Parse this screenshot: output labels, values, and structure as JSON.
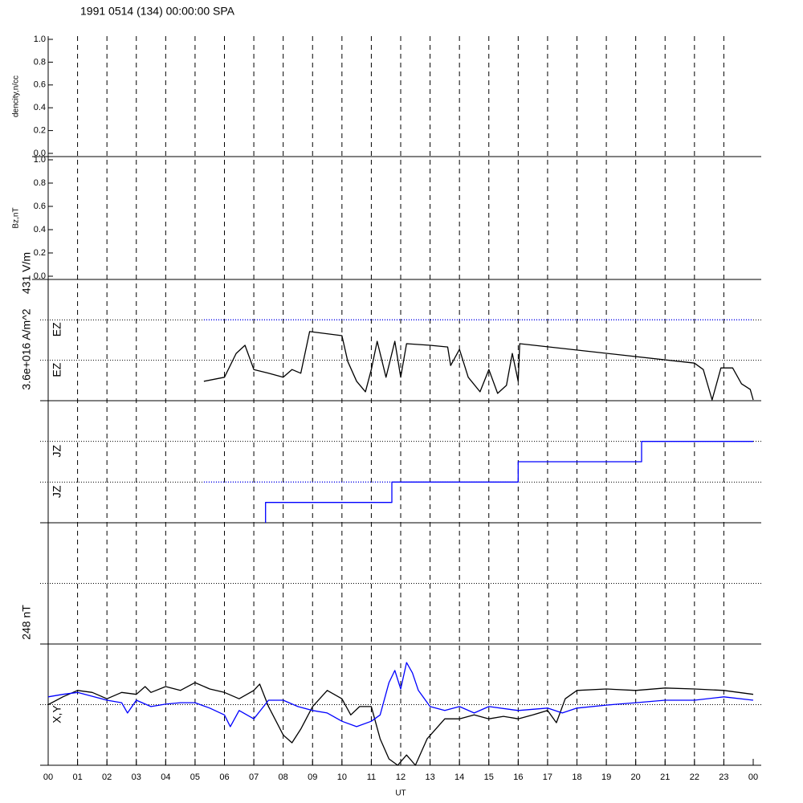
{
  "title": "1991 0514 (134) 00:00:00 SPA",
  "x_axis": {
    "label": "UT",
    "xlim": [
      0,
      24
    ],
    "xticks": [
      {
        "value": 0,
        "label": "00"
      },
      {
        "value": 1,
        "label": "01"
      },
      {
        "value": 2,
        "label": "02"
      },
      {
        "value": 3,
        "label": "03"
      },
      {
        "value": 4,
        "label": "04"
      },
      {
        "value": 5,
        "label": "05"
      },
      {
        "value": 6,
        "label": "06"
      },
      {
        "value": 7,
        "label": "07"
      },
      {
        "value": 8,
        "label": "08"
      },
      {
        "value": 9,
        "label": "09"
      },
      {
        "value": 10,
        "label": "10"
      },
      {
        "value": 11,
        "label": "11"
      },
      {
        "value": 12,
        "label": "12"
      },
      {
        "value": 13,
        "label": "13"
      },
      {
        "value": 14,
        "label": "14"
      },
      {
        "value": 15,
        "label": "15"
      },
      {
        "value": 16,
        "label": "16"
      },
      {
        "value": 17,
        "label": "17"
      },
      {
        "value": 18,
        "label": "18"
      },
      {
        "value": 19,
        "label": "19"
      },
      {
        "value": 20,
        "label": "20"
      },
      {
        "value": 21,
        "label": "21"
      },
      {
        "value": 22,
        "label": "22"
      },
      {
        "value": 23,
        "label": "23"
      },
      {
        "value": 24,
        "label": "00"
      }
    ]
  },
  "chart_data": [
    {
      "type": "line",
      "ylabel": "dencity,n/cc",
      "ylim": [
        0,
        1
      ],
      "yticks": [
        {
          "value": 0,
          "label": "0.0"
        },
        0.2,
        0.4,
        0.6,
        0.8,
        {
          "value": 1,
          "label": "1.0"
        }
      ]
    },
    {
      "type": "line",
      "ylabel": "Bz,nT",
      "ylim": [
        0,
        1
      ],
      "yticks": [
        {
          "value": 0,
          "label": "0.0"
        },
        0.2,
        0.4,
        0.6,
        0.8,
        {
          "value": 1,
          "label": "1.0"
        }
      ]
    },
    {
      "type": "line",
      "ylim": [
        0,
        3
      ],
      "gridlines": [
        2,
        1
      ],
      "trace_labels": [
        "EZ",
        "EZ"
      ],
      "unit_label": "431 V/m",
      "series": [
        {
          "color": "#0000ff",
          "dash": "dotted",
          "x": [
            5.3,
            24
          ],
          "values": [
            2,
            2
          ]
        },
        {
          "color": "#000000",
          "x": [
            5.3,
            6.0,
            6.4,
            6.7,
            7.0,
            7.5,
            8.0,
            8.3,
            8.6,
            8.9,
            10.0,
            10.2,
            10.5,
            10.8,
            11.0,
            11.2,
            11.5,
            11.8,
            12.0,
            12.2,
            13.0,
            13.6,
            13.7,
            14.0,
            14.3,
            14.7,
            15.0,
            15.3,
            15.6,
            15.8,
            16.0,
            16.05,
            22.0,
            22.3,
            22.6,
            22.9,
            23.3,
            23.6,
            23.9,
            24.0
          ],
          "values": [
            0.48,
            0.58,
            1.17,
            1.37,
            0.77,
            0.68,
            0.58,
            0.77,
            0.68,
            1.71,
            1.61,
            0.97,
            0.48,
            0.22,
            0.77,
            1.47,
            0.58,
            1.47,
            0.58,
            1.41,
            1.37,
            1.33,
            0.87,
            1.27,
            0.58,
            0.22,
            0.77,
            0.18,
            0.38,
            1.17,
            0.48,
            1.41,
            0.93,
            0.77,
            0.02,
            0.81,
            0.81,
            0.42,
            0.28,
            0.02
          ]
        }
      ]
    },
    {
      "type": "line",
      "ylim": [
        0,
        3
      ],
      "gridlines": [
        2,
        1
      ],
      "trace_labels": [
        "JZ",
        "JZ"
      ],
      "unit_label": "3.6e+016 A/m^2",
      "series": [
        {
          "color": "#0000ff",
          "dash": "dotted",
          "x": [
            5.3,
            11.7
          ],
          "values": [
            1,
            1
          ]
        },
        {
          "color": "#0000ff",
          "x": [
            7.4,
            7.4,
            11.7,
            11.7,
            16,
            16,
            20.2,
            20.2,
            24
          ],
          "values": [
            0,
            0.5,
            0.5,
            1,
            1,
            1.5,
            1.5,
            2,
            2
          ]
        }
      ]
    },
    {
      "type": "line",
      "ylim": [
        -124,
        124
      ],
      "gridlines": [
        0
      ]
    },
    {
      "type": "line",
      "ylim": [
        -124,
        124
      ],
      "gridlines": [
        0
      ],
      "trace_labels": [
        "X,Y"
      ],
      "unit_label": "248 nT",
      "series": [
        {
          "color": "#000000",
          "x": [
            0,
            0.5,
            1,
            1.5,
            2,
            2.5,
            3,
            3.3,
            3.5,
            4,
            4.5,
            5,
            5.5,
            6,
            6.5,
            7,
            7.2,
            7.5,
            8,
            8.3,
            8.6,
            9,
            9.5,
            10,
            10.3,
            10.6,
            11,
            11.3,
            11.6,
            11.9,
            12.2,
            12.5,
            12.9,
            13.5,
            14,
            14.5,
            15,
            15.5,
            16,
            16.5,
            17,
            17.3,
            17.6,
            18,
            19,
            20,
            21,
            22,
            23,
            24
          ],
          "values": [
            0,
            16,
            29,
            25,
            12,
            25,
            21,
            37,
            25,
            37,
            29,
            45,
            32,
            25,
            12,
            29,
            42,
            -4,
            -62,
            -78,
            -50,
            -4,
            29,
            12,
            -21,
            -4,
            -4,
            -70,
            -111,
            -124,
            -103,
            -124,
            -70,
            -29,
            -29,
            -21,
            -29,
            -24,
            -29,
            -21,
            -12,
            -37,
            12,
            29,
            32,
            29,
            34,
            32,
            29,
            21
          ]
        },
        {
          "color": "#0000ff",
          "x": [
            0,
            0.5,
            1,
            1.5,
            2,
            2.5,
            2.7,
            3,
            3.5,
            4,
            4.5,
            5,
            5.5,
            6,
            6.2,
            6.5,
            7,
            7.5,
            8,
            8.5,
            9,
            9.5,
            10,
            10.5,
            11,
            11.3,
            11.6,
            11.8,
            12,
            12.2,
            12.4,
            12.6,
            13,
            13.5,
            14,
            14.5,
            15,
            16,
            17,
            17.5,
            18,
            19,
            20,
            21,
            22,
            23,
            24
          ],
          "values": [
            16,
            21,
            25,
            17,
            9,
            4,
            -17,
            9,
            -4,
            1,
            4,
            4,
            -7,
            -21,
            -45,
            -12,
            -29,
            9,
            9,
            -4,
            -12,
            -17,
            -34,
            -45,
            -34,
            -21,
            45,
            70,
            32,
            86,
            65,
            29,
            -4,
            -12,
            -4,
            -17,
            -4,
            -12,
            -7,
            -17,
            -7,
            -1,
            4,
            9,
            9,
            16,
            9
          ]
        }
      ]
    }
  ]
}
